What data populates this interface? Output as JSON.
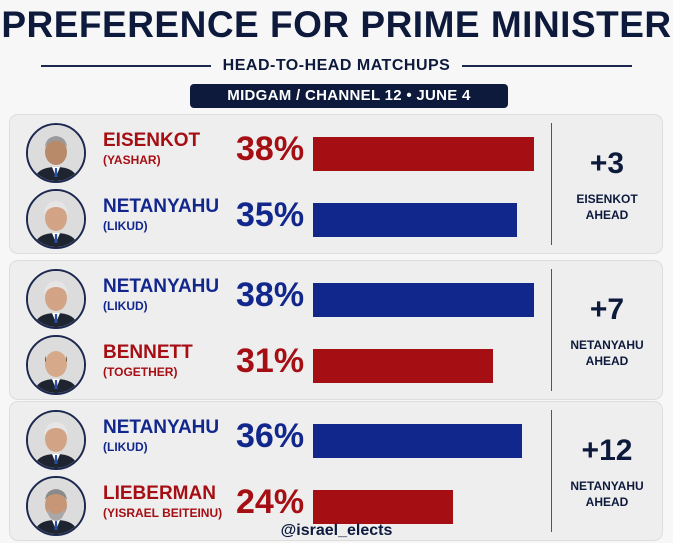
{
  "header": {
    "title": "PREFERENCE FOR PRIME MINISTER",
    "subtitle": "HEAD-TO-HEAD MATCHUPS",
    "source": "MIDGAM / CHANNEL 12 • JUNE 4"
  },
  "colors": {
    "red": "#a50f14",
    "blue": "#12278c",
    "navy": "#0d1a3c"
  },
  "footer": {
    "handle": "@israel_elects"
  },
  "chart_data": {
    "type": "bar",
    "title": "PREFERENCE FOR PRIME MINISTER",
    "subtitle": "HEAD-TO-HEAD MATCHUPS",
    "unit": "%",
    "xlim": [
      0,
      38
    ],
    "matchups": [
      {
        "candidates": [
          {
            "name": "EISENKOT",
            "party": "(YASHAR)",
            "value": 38,
            "pct_label": "38%",
            "color": "red",
            "avatar": "person-gray-hair-icon"
          },
          {
            "name": "NETANYAHU",
            "party": "(LIKUD)",
            "value": 35,
            "pct_label": "35%",
            "color": "blue",
            "avatar": "person-white-hair-icon"
          }
        ],
        "margin": "+3",
        "leader_line1": "EISENKOT",
        "leader_line2": "AHEAD"
      },
      {
        "candidates": [
          {
            "name": "NETANYAHU",
            "party": "(LIKUD)",
            "value": 38,
            "pct_label": "38%",
            "color": "blue",
            "avatar": "person-white-hair-icon"
          },
          {
            "name": "BENNETT",
            "party": "(TOGETHER)",
            "value": 31,
            "pct_label": "31%",
            "color": "red",
            "avatar": "person-bald-icon"
          }
        ],
        "margin": "+7",
        "leader_line1": "NETANYAHU",
        "leader_line2": "AHEAD"
      },
      {
        "candidates": [
          {
            "name": "NETANYAHU",
            "party": "(LIKUD)",
            "value": 36,
            "pct_label": "36%",
            "color": "blue",
            "avatar": "person-white-hair-icon"
          },
          {
            "name": "LIEBERMAN",
            "party": "(YISRAEL BEITEINU)",
            "value": 24,
            "pct_label": "24%",
            "color": "red",
            "avatar": "person-bearded-icon"
          }
        ],
        "margin": "+12",
        "leader_line1": "NETANYAHU",
        "leader_line2": "AHEAD"
      }
    ]
  }
}
